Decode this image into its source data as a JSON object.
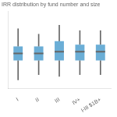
{
  "chart_data": {
    "type": "box",
    "title": "IRR distribution by fund number and size",
    "categories": [
      "I",
      "II",
      "III",
      "IV+",
      "I-III $1B+"
    ],
    "q1": [
      0.1,
      0.1,
      0.1,
      0.1,
      0.1
    ],
    "median": [
      0.14,
      0.14,
      0.15,
      0.15,
      0.15
    ],
    "q3": [
      0.18,
      0.18,
      0.21,
      0.19,
      0.19
    ],
    "whislo": [
      -0.01,
      0.02,
      0.01,
      0.02,
      0.02
    ],
    "whishi": [
      0.28,
      0.25,
      0.3,
      0.27,
      0.27
    ],
    "color": "#6baed6",
    "ylim": [
      -0.06,
      0.38
    ],
    "grid": false,
    "tick_labels": "x"
  }
}
